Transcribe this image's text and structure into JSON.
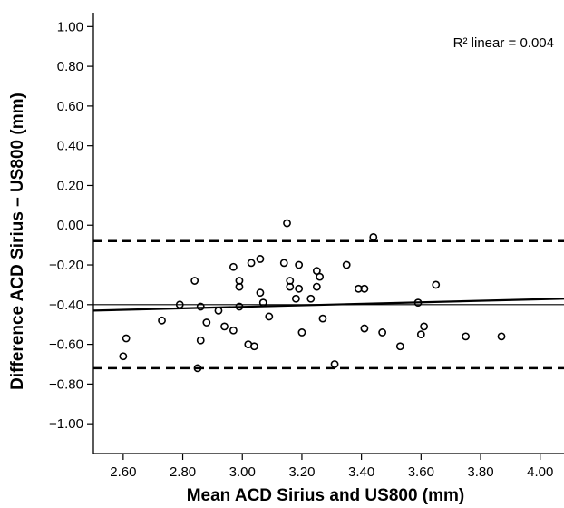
{
  "chart_data": {
    "type": "scatter",
    "title": "",
    "xlabel": "Mean ACD Sirius and US800 (mm)",
    "ylabel": "Difference ACD Sirius – US800 (mm)",
    "xlim": [
      2.5,
      4.08
    ],
    "ylim": [
      -1.15,
      1.07
    ],
    "x_ticks": [
      2.6,
      2.8,
      3.0,
      3.2,
      3.4,
      3.6,
      3.8,
      4.0
    ],
    "x_tick_labels": [
      "2.60",
      "2.80",
      "3.00",
      "3.20",
      "3.40",
      "3.60",
      "3.80",
      "4.00"
    ],
    "y_ticks": [
      1.0,
      0.8,
      0.6,
      0.4,
      0.2,
      0.0,
      -0.2,
      -0.4,
      -0.6,
      -0.8,
      -1.0
    ],
    "y_tick_labels": [
      "1.00",
      "0.80",
      "0.60",
      "0.40",
      "0.20",
      "0.00",
      "−0.20",
      "−0.40",
      "−0.60",
      "−0.80",
      "−1.00"
    ],
    "grid": false,
    "annotation": {
      "r2_label": "R² linear = 0.004"
    },
    "mean_difference": -0.4,
    "upper_loa": -0.08,
    "lower_loa": -0.72,
    "fit_line": {
      "x": [
        2.5,
        4.08
      ],
      "y": [
        -0.43,
        -0.37
      ]
    },
    "series": [
      {
        "points": [
          [
            2.6,
            -0.66
          ],
          [
            2.61,
            -0.57
          ],
          [
            2.73,
            -0.48
          ],
          [
            2.79,
            -0.4
          ],
          [
            2.84,
            -0.28
          ],
          [
            2.85,
            -0.72
          ],
          [
            2.86,
            -0.41
          ],
          [
            2.86,
            -0.58
          ],
          [
            2.88,
            -0.49
          ],
          [
            2.92,
            -0.43
          ],
          [
            2.94,
            -0.51
          ],
          [
            2.97,
            -0.21
          ],
          [
            2.97,
            -0.53
          ],
          [
            2.99,
            -0.28
          ],
          [
            2.99,
            -0.31
          ],
          [
            2.99,
            -0.41
          ],
          [
            3.02,
            -0.6
          ],
          [
            3.03,
            -0.19
          ],
          [
            3.04,
            -0.61
          ],
          [
            3.06,
            -0.17
          ],
          [
            3.06,
            -0.34
          ],
          [
            3.07,
            -0.39
          ],
          [
            3.09,
            -0.46
          ],
          [
            3.14,
            -0.19
          ],
          [
            3.15,
            0.01
          ],
          [
            3.16,
            -0.28
          ],
          [
            3.16,
            -0.31
          ],
          [
            3.18,
            -0.37
          ],
          [
            3.19,
            -0.2
          ],
          [
            3.19,
            -0.32
          ],
          [
            3.2,
            -0.54
          ],
          [
            3.23,
            -0.37
          ],
          [
            3.25,
            -0.23
          ],
          [
            3.25,
            -0.31
          ],
          [
            3.26,
            -0.26
          ],
          [
            3.27,
            -0.47
          ],
          [
            3.31,
            -0.7
          ],
          [
            3.35,
            -0.2
          ],
          [
            3.39,
            -0.32
          ],
          [
            3.41,
            -0.32
          ],
          [
            3.41,
            -0.52
          ],
          [
            3.44,
            -0.06
          ],
          [
            3.47,
            -0.54
          ],
          [
            3.53,
            -0.61
          ],
          [
            3.59,
            -0.39
          ],
          [
            3.6,
            -0.55
          ],
          [
            3.61,
            -0.51
          ],
          [
            3.65,
            -0.3
          ],
          [
            3.75,
            -0.56
          ],
          [
            3.87,
            -0.56
          ]
        ]
      }
    ]
  }
}
